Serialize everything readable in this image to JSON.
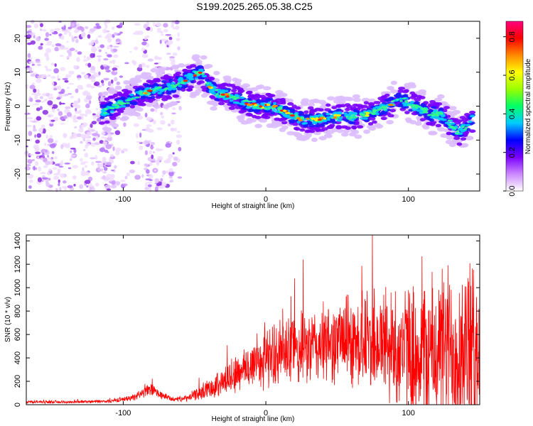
{
  "title": "S199.2025.265.05.38.C25",
  "chart_data": [
    {
      "type": "heatmap",
      "id": "spectrogram",
      "xlabel": "Height of straight line (km)",
      "ylabel": "Frequency (Hz)",
      "xlim": [
        -168,
        150
      ],
      "ylim": [
        -25,
        25
      ],
      "xticks": [
        -100,
        0,
        100
      ],
      "yticks": [
        -20,
        -10,
        0,
        10,
        20
      ],
      "colorbar": {
        "label": "Normalized spectral amplitude",
        "range": [
          0.0,
          0.88
        ],
        "ticks": [
          0.0,
          0.2,
          0.4,
          0.6,
          0.8
        ],
        "colors": [
          "#ffffff",
          "#cc88ff",
          "#7a00ff",
          "#0000ff",
          "#00ccff",
          "#00ff66",
          "#99ff00",
          "#ffff00",
          "#ff8800",
          "#ff0000",
          "#ff0080"
        ]
      },
      "ridge": {
        "x": [
          -115,
          -105,
          -95,
          -85,
          -75,
          -65,
          -55,
          -45,
          -40,
          -35,
          -25,
          -15,
          -5,
          5,
          15,
          25,
          35,
          45,
          55,
          65,
          75,
          85,
          95,
          105,
          115,
          125,
          135,
          145
        ],
        "freq": [
          -2,
          0,
          2,
          4,
          5,
          6,
          8,
          10,
          6,
          4,
          3,
          1,
          0,
          0,
          -2,
          -4,
          -4,
          -3,
          -3,
          -3,
          -2,
          0,
          2,
          0,
          -2,
          -3,
          -8,
          -4
        ]
      }
    },
    {
      "type": "line",
      "id": "snr",
      "xlabel": "Height of straight line (km)",
      "ylabel": "SNR (10 * v/v)",
      "xlim": [
        -168,
        150
      ],
      "ylim": [
        0,
        1450
      ],
      "xticks": [
        -100,
        0,
        100
      ],
      "yticks": [
        0,
        200,
        400,
        600,
        800,
        1000,
        1200,
        1400
      ],
      "color": "#ff0000",
      "envelope": {
        "x": [
          -168,
          -140,
          -110,
          -95,
          -85,
          -80,
          -75,
          -65,
          -55,
          -45,
          -35,
          -25,
          -15,
          -5,
          5,
          15,
          25,
          35,
          45,
          55,
          65,
          75,
          85,
          95,
          105,
          115,
          125,
          135,
          145,
          150
        ],
        "mean": [
          25,
          22,
          30,
          55,
          110,
          130,
          90,
          45,
          55,
          110,
          170,
          230,
          300,
          380,
          420,
          450,
          470,
          500,
          520,
          560,
          540,
          560,
          500,
          480,
          450,
          430,
          480,
          500,
          480,
          460
        ],
        "spread": [
          15,
          12,
          15,
          25,
          50,
          60,
          40,
          20,
          30,
          70,
          110,
          160,
          200,
          260,
          280,
          320,
          330,
          350,
          360,
          380,
          420,
          480,
          520,
          560,
          650,
          700,
          750,
          800,
          760,
          700
        ]
      }
    }
  ]
}
